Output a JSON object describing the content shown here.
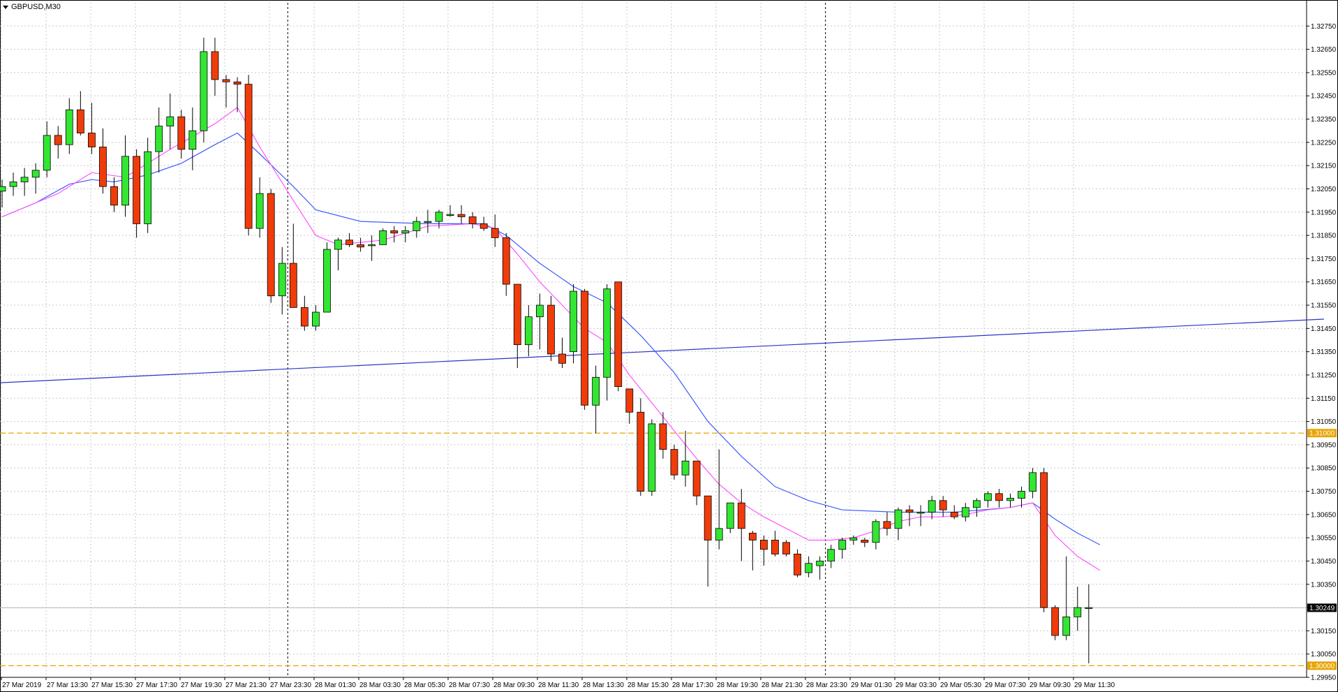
{
  "window": {
    "title": "GBPUSD,M30"
  },
  "chart_data": {
    "type": "candlestick",
    "symbol": "GBPUSD",
    "timeframe": "M30",
    "ylim": [
      1.2995,
      1.3285
    ],
    "y_ticks": [
      "1.32750",
      "1.32650",
      "1.32550",
      "1.32450",
      "1.32350",
      "1.32250",
      "1.32150",
      "1.32050",
      "1.31950",
      "1.31850",
      "1.31750",
      "1.31650",
      "1.31550",
      "1.31450",
      "1.31350",
      "1.31250",
      "1.31150",
      "1.31050",
      "1.30950",
      "1.30850",
      "1.30750",
      "1.30650",
      "1.30550",
      "1.30450",
      "1.30350",
      "1.30250",
      "1.30150",
      "1.30050",
      "1.29950"
    ],
    "x_labels": [
      "27 Mar 2019",
      "27 Mar 13:30",
      "27 Mar 15:30",
      "27 Mar 17:30",
      "27 Mar 19:30",
      "27 Mar 21:30",
      "27 Mar 23:30",
      "28 Mar 01:30",
      "28 Mar 03:30",
      "28 Mar 05:30",
      "28 Mar 07:30",
      "28 Mar 09:30",
      "28 Mar 11:30",
      "28 Mar 13:30",
      "28 Mar 15:30",
      "28 Mar 17:30",
      "28 Mar 19:30",
      "28 Mar 21:30",
      "28 Mar 23:30",
      "29 Mar 01:30",
      "29 Mar 03:30",
      "29 Mar 05:30",
      "29 Mar 07:30",
      "29 Mar 09:30",
      "29 Mar 11:30"
    ],
    "candles": [
      {
        "o": 1.3204,
        "h": 1.3209,
        "l": 1.3197,
        "c": 1.3206
      },
      {
        "o": 1.3206,
        "h": 1.3212,
        "l": 1.3202,
        "c": 1.3208
      },
      {
        "o": 1.3208,
        "h": 1.3214,
        "l": 1.3202,
        "c": 1.321
      },
      {
        "o": 1.321,
        "h": 1.3216,
        "l": 1.3203,
        "c": 1.3213
      },
      {
        "o": 1.3213,
        "h": 1.3234,
        "l": 1.321,
        "c": 1.3228
      },
      {
        "o": 1.3228,
        "h": 1.3232,
        "l": 1.3218,
        "c": 1.3224
      },
      {
        "o": 1.3224,
        "h": 1.3244,
        "l": 1.322,
        "c": 1.3239
      },
      {
        "o": 1.3239,
        "h": 1.3247,
        "l": 1.3228,
        "c": 1.3229
      },
      {
        "o": 1.3229,
        "h": 1.3242,
        "l": 1.322,
        "c": 1.3223
      },
      {
        "o": 1.3223,
        "h": 1.3231,
        "l": 1.3203,
        "c": 1.3206
      },
      {
        "o": 1.3206,
        "h": 1.321,
        "l": 1.3195,
        "c": 1.3198
      },
      {
        "o": 1.3198,
        "h": 1.3228,
        "l": 1.3193,
        "c": 1.3219
      },
      {
        "o": 1.3219,
        "h": 1.3222,
        "l": 1.3184,
        "c": 1.319
      },
      {
        "o": 1.319,
        "h": 1.3227,
        "l": 1.3186,
        "c": 1.3221
      },
      {
        "o": 1.3221,
        "h": 1.324,
        "l": 1.3212,
        "c": 1.3232
      },
      {
        "o": 1.3232,
        "h": 1.3246,
        "l": 1.3222,
        "c": 1.3236
      },
      {
        "o": 1.3236,
        "h": 1.3239,
        "l": 1.3218,
        "c": 1.3222
      },
      {
        "o": 1.3222,
        "h": 1.324,
        "l": 1.3213,
        "c": 1.323
      },
      {
        "o": 1.323,
        "h": 1.327,
        "l": 1.3225,
        "c": 1.3264
      },
      {
        "o": 1.3264,
        "h": 1.327,
        "l": 1.3245,
        "c": 1.3252
      },
      {
        "o": 1.3252,
        "h": 1.3254,
        "l": 1.324,
        "c": 1.3251
      },
      {
        "o": 1.3251,
        "h": 1.3253,
        "l": 1.3238,
        "c": 1.325
      },
      {
        "o": 1.325,
        "h": 1.3254,
        "l": 1.3185,
        "c": 1.3188
      },
      {
        "o": 1.3188,
        "h": 1.321,
        "l": 1.3184,
        "c": 1.3203
      },
      {
        "o": 1.3203,
        "h": 1.3205,
        "l": 1.3156,
        "c": 1.3159
      },
      {
        "o": 1.3159,
        "h": 1.318,
        "l": 1.3151,
        "c": 1.3173
      },
      {
        "o": 1.3173,
        "h": 1.319,
        "l": 1.3154,
        "c": 1.3154
      },
      {
        "o": 1.3154,
        "h": 1.3159,
        "l": 1.3144,
        "c": 1.3146
      },
      {
        "o": 1.3146,
        "h": 1.3155,
        "l": 1.3144,
        "c": 1.3152
      },
      {
        "o": 1.3152,
        "h": 1.3182,
        "l": 1.3152,
        "c": 1.3179
      },
      {
        "o": 1.3179,
        "h": 1.3184,
        "l": 1.317,
        "c": 1.3183
      },
      {
        "o": 1.3183,
        "h": 1.3186,
        "l": 1.318,
        "c": 1.3181
      },
      {
        "o": 1.3181,
        "h": 1.3184,
        "l": 1.3178,
        "c": 1.318
      },
      {
        "o": 1.3181,
        "h": 1.3185,
        "l": 1.3174,
        "c": 1.3181
      },
      {
        "o": 1.3181,
        "h": 1.3188,
        "l": 1.3181,
        "c": 1.3187
      },
      {
        "o": 1.3187,
        "h": 1.3189,
        "l": 1.3182,
        "c": 1.3186
      },
      {
        "o": 1.3186,
        "h": 1.3189,
        "l": 1.3182,
        "c": 1.3187
      },
      {
        "o": 1.3187,
        "h": 1.3193,
        "l": 1.3184,
        "c": 1.3191
      },
      {
        "o": 1.3191,
        "h": 1.3196,
        "l": 1.3186,
        "c": 1.3191
      },
      {
        "o": 1.3191,
        "h": 1.3196,
        "l": 1.3188,
        "c": 1.3195
      },
      {
        "o": 1.3194,
        "h": 1.3198,
        "l": 1.3193,
        "c": 1.3194
      },
      {
        "o": 1.3194,
        "h": 1.3198,
        "l": 1.319,
        "c": 1.3193
      },
      {
        "o": 1.3193,
        "h": 1.3195,
        "l": 1.3188,
        "c": 1.319
      },
      {
        "o": 1.319,
        "h": 1.3193,
        "l": 1.3187,
        "c": 1.3188
      },
      {
        "o": 1.3188,
        "h": 1.3194,
        "l": 1.318,
        "c": 1.3184
      },
      {
        "o": 1.3184,
        "h": 1.3186,
        "l": 1.3159,
        "c": 1.3164
      },
      {
        "o": 1.3164,
        "h": 1.3164,
        "l": 1.3128,
        "c": 1.3138
      },
      {
        "o": 1.3138,
        "h": 1.3155,
        "l": 1.3133,
        "c": 1.315
      },
      {
        "o": 1.315,
        "h": 1.316,
        "l": 1.3136,
        "c": 1.3155
      },
      {
        "o": 1.3155,
        "h": 1.3159,
        "l": 1.3131,
        "c": 1.3134
      },
      {
        "o": 1.3134,
        "h": 1.3141,
        "l": 1.3128,
        "c": 1.313
      },
      {
        "o": 1.3135,
        "h": 1.3164,
        "l": 1.313,
        "c": 1.3161
      },
      {
        "o": 1.3161,
        "h": 1.3162,
        "l": 1.311,
        "c": 1.3112
      },
      {
        "o": 1.3112,
        "h": 1.3129,
        "l": 1.31,
        "c": 1.3124
      },
      {
        "o": 1.3124,
        "h": 1.3164,
        "l": 1.3114,
        "c": 1.3162
      },
      {
        "o": 1.3165,
        "h": 1.3165,
        "l": 1.3118,
        "c": 1.312
      },
      {
        "o": 1.3119,
        "h": 1.3119,
        "l": 1.3104,
        "c": 1.3109
      },
      {
        "o": 1.3109,
        "h": 1.3115,
        "l": 1.3073,
        "c": 1.3075
      },
      {
        "o": 1.3075,
        "h": 1.3106,
        "l": 1.3073,
        "c": 1.3104
      },
      {
        "o": 1.3104,
        "h": 1.3109,
        "l": 1.3089,
        "c": 1.3093
      },
      {
        "o": 1.3093,
        "h": 1.3095,
        "l": 1.308,
        "c": 1.3082
      },
      {
        "o": 1.3082,
        "h": 1.3101,
        "l": 1.3077,
        "c": 1.3088
      },
      {
        "o": 1.3088,
        "h": 1.3088,
        "l": 1.3069,
        "c": 1.3073
      },
      {
        "o": 1.3073,
        "h": 1.3073,
        "l": 1.3034,
        "c": 1.3054
      },
      {
        "o": 1.3054,
        "h": 1.3093,
        "l": 1.305,
        "c": 1.3059
      },
      {
        "o": 1.3059,
        "h": 1.307,
        "l": 1.3057,
        "c": 1.307
      },
      {
        "o": 1.307,
        "h": 1.3076,
        "l": 1.3045,
        "c": 1.3059
      },
      {
        "o": 1.3057,
        "h": 1.3058,
        "l": 1.3041,
        "c": 1.3054
      },
      {
        "o": 1.3054,
        "h": 1.3056,
        "l": 1.3043,
        "c": 1.305
      },
      {
        "o": 1.3054,
        "h": 1.3058,
        "l": 1.3047,
        "c": 1.3048
      },
      {
        "o": 1.3053,
        "h": 1.3054,
        "l": 1.3047,
        "c": 1.3048
      },
      {
        "o": 1.3048,
        "h": 1.305,
        "l": 1.3038,
        "c": 1.3039
      },
      {
        "o": 1.304,
        "h": 1.3047,
        "l": 1.3038,
        "c": 1.3044
      },
      {
        "o": 1.3043,
        "h": 1.3047,
        "l": 1.3037,
        "c": 1.3045
      },
      {
        "o": 1.3045,
        "h": 1.3052,
        "l": 1.3042,
        "c": 1.305
      },
      {
        "o": 1.305,
        "h": 1.3055,
        "l": 1.3046,
        "c": 1.3054
      },
      {
        "o": 1.3054,
        "h": 1.3056,
        "l": 1.3052,
        "c": 1.3055
      },
      {
        "o": 1.3054,
        "h": 1.3055,
        "l": 1.3051,
        "c": 1.3053
      },
      {
        "o": 1.3053,
        "h": 1.3063,
        "l": 1.305,
        "c": 1.3062
      },
      {
        "o": 1.3062,
        "h": 1.3066,
        "l": 1.3056,
        "c": 1.3059
      },
      {
        "o": 1.3059,
        "h": 1.3068,
        "l": 1.3054,
        "c": 1.3067
      },
      {
        "o": 1.3067,
        "h": 1.3069,
        "l": 1.306,
        "c": 1.3066
      },
      {
        "o": 1.3066,
        "h": 1.3069,
        "l": 1.306,
        "c": 1.3066
      },
      {
        "o": 1.3066,
        "h": 1.3073,
        "l": 1.3063,
        "c": 1.3071
      },
      {
        "o": 1.3071,
        "h": 1.3073,
        "l": 1.3064,
        "c": 1.3067
      },
      {
        "o": 1.3066,
        "h": 1.3069,
        "l": 1.3063,
        "c": 1.3064
      },
      {
        "o": 1.3064,
        "h": 1.307,
        "l": 1.3062,
        "c": 1.3068
      },
      {
        "o": 1.3068,
        "h": 1.3072,
        "l": 1.3064,
        "c": 1.3071
      },
      {
        "o": 1.3071,
        "h": 1.3075,
        "l": 1.3068,
        "c": 1.3074
      },
      {
        "o": 1.3074,
        "h": 1.3076,
        "l": 1.3068,
        "c": 1.3071
      },
      {
        "o": 1.3071,
        "h": 1.3074,
        "l": 1.3068,
        "c": 1.3072
      },
      {
        "o": 1.3072,
        "h": 1.3077,
        "l": 1.3068,
        "c": 1.3075
      },
      {
        "o": 1.3075,
        "h": 1.3085,
        "l": 1.3072,
        "c": 1.3083
      },
      {
        "o": 1.3083,
        "h": 1.3085,
        "l": 1.3023,
        "c": 1.3025
      },
      {
        "o": 1.3025,
        "h": 1.3026,
        "l": 1.3011,
        "c": 1.3013
      },
      {
        "o": 1.3013,
        "h": 1.3047,
        "l": 1.3011,
        "c": 1.3021
      },
      {
        "o": 1.3021,
        "h": 1.3034,
        "l": 1.3015,
        "c": 1.3025
      },
      {
        "o": 1.3025,
        "h": 1.3035,
        "l": 1.3001,
        "c": 1.3025
      }
    ],
    "ma_fast": [
      [
        0,
        1.3193
      ],
      [
        5,
        1.3203
      ],
      [
        8,
        1.3212
      ],
      [
        11,
        1.321
      ],
      [
        15,
        1.3222
      ],
      [
        19,
        1.3233
      ],
      [
        21,
        1.324
      ],
      [
        23,
        1.3223
      ],
      [
        26,
        1.32
      ],
      [
        28,
        1.3185
      ],
      [
        30,
        1.3181
      ],
      [
        34,
        1.3183
      ],
      [
        38,
        1.3189
      ],
      [
        42,
        1.319
      ],
      [
        44,
        1.3188
      ],
      [
        46,
        1.3177
      ],
      [
        48,
        1.3165
      ],
      [
        50,
        1.3155
      ],
      [
        52,
        1.3145
      ],
      [
        54,
        1.3139
      ],
      [
        56,
        1.3125
      ],
      [
        58,
        1.3113
      ],
      [
        60,
        1.3101
      ],
      [
        62,
        1.3089
      ],
      [
        64,
        1.3078
      ],
      [
        66,
        1.307
      ],
      [
        68,
        1.3064
      ],
      [
        70,
        1.3059
      ],
      [
        72,
        1.3054
      ],
      [
        74,
        1.3054
      ],
      [
        76,
        1.3055
      ],
      [
        78,
        1.3058
      ],
      [
        80,
        1.3062
      ],
      [
        82,
        1.3064
      ],
      [
        84,
        1.3064
      ],
      [
        86,
        1.3065
      ],
      [
        88,
        1.3067
      ],
      [
        90,
        1.3068
      ],
      [
        92,
        1.307
      ],
      [
        94,
        1.3056
      ],
      [
        96,
        1.3047
      ],
      [
        98,
        1.3041
      ]
    ],
    "ma_slow": [
      [
        0,
        1.3193
      ],
      [
        3,
        1.3199
      ],
      [
        6,
        1.3207
      ],
      [
        8,
        1.3209
      ],
      [
        10,
        1.3208
      ],
      [
        13,
        1.3211
      ],
      [
        16,
        1.3216
      ],
      [
        19,
        1.3224
      ],
      [
        21,
        1.3229
      ],
      [
        23,
        1.322
      ],
      [
        26,
        1.3206
      ],
      [
        28,
        1.3196
      ],
      [
        32,
        1.3191
      ],
      [
        38,
        1.319
      ],
      [
        43,
        1.319
      ],
      [
        45,
        1.3185
      ],
      [
        48,
        1.3173
      ],
      [
        51,
        1.3163
      ],
      [
        54,
        1.3156
      ],
      [
        57,
        1.3142
      ],
      [
        60,
        1.3126
      ],
      [
        63,
        1.3105
      ],
      [
        66,
        1.309
      ],
      [
        69,
        1.3077
      ],
      [
        72,
        1.3071
      ],
      [
        75,
        1.3067
      ],
      [
        80,
        1.3066
      ],
      [
        85,
        1.3066
      ],
      [
        90,
        1.3068
      ],
      [
        92,
        1.307
      ],
      [
        94,
        1.3063
      ],
      [
        96,
        1.3057
      ],
      [
        98,
        1.3052
      ]
    ],
    "trendline": {
      "from": [
        -3,
        1.3121
      ],
      "to": [
        118,
        1.3149
      ]
    },
    "horizontal_levels": [
      "1.31000",
      "1.30000"
    ],
    "current_price": "1.30249",
    "vertical_separators": [
      25.5,
      73.5
    ],
    "colors": {
      "bull": "#32e632",
      "bear": "#f03c0a",
      "wick": "#000000",
      "ma_fast": "#ff55ff",
      "ma_slow": "#3d5bff",
      "trendline": "#2a33c8",
      "levels": "#e8a400",
      "grid": "#c8c8c8",
      "current_price_bg": "#000000"
    },
    "grid": true
  }
}
